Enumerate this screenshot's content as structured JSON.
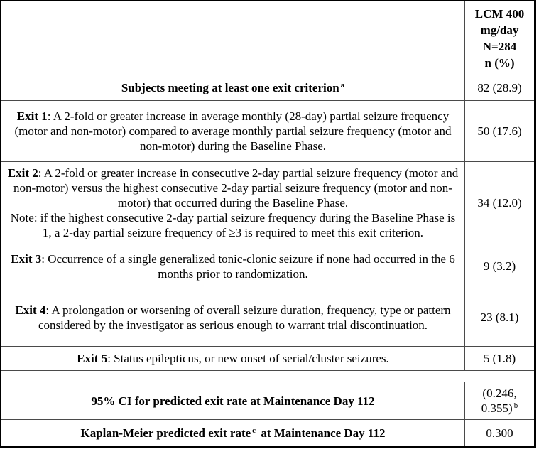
{
  "header": {
    "treatment_column": "LCM 400\nmg/day\nN=284\nn (%)"
  },
  "rows": [
    {
      "label": "Subjects meeting at least one exit criterion",
      "sup": "a",
      "value": "82 (28.9)"
    },
    {
      "prefix": "Exit 1",
      "body": ": A 2-fold or greater increase in average monthly (28-day) partial seizure frequency (motor and non-motor) compared to average monthly partial seizure frequency (motor and non-motor) during the Baseline Phase.",
      "value": "50 (17.6)"
    },
    {
      "prefix": "Exit 2",
      "body": ": A 2-fold or greater increase in consecutive 2-day partial seizure frequency (motor and non-motor) versus the highest consecutive 2-day partial seizure frequency (motor and non-motor) that occurred during the Baseline Phase.",
      "note": "Note: if the highest consecutive 2-day partial seizure frequency during the Baseline Phase is 1, a 2-day partial seizure frequency of ≥3 is required to meet this exit criterion.",
      "value": "34 (12.0)"
    },
    {
      "prefix": "Exit 3",
      "body": ": Occurrence of a single generalized tonic-clonic seizure if none had occurred in the 6 months prior to randomization.",
      "value": "9 (3.2)"
    },
    {
      "prefix": "Exit 4",
      "body": ": A prolongation or worsening of overall seizure duration, frequency, type or pattern considered by the investigator as serious enough to warrant trial discontinuation.",
      "value": "23 (8.1)"
    },
    {
      "prefix": "Exit 5",
      "body": ": Status epilepticus, or new onset of serial/cluster seizures.",
      "value": "5 (1.8)"
    }
  ],
  "summary": {
    "ci": {
      "label": "95% CI for predicted exit rate at Maintenance Day 112",
      "value_line1": "(0.246,",
      "value_line2": "0.355)",
      "value_sup": "b"
    },
    "km": {
      "label_pre": "Kaplan-Meier predicted exit rate",
      "sup": "c",
      "label_post": "at Maintenance Day 112",
      "value": "0.300"
    }
  }
}
